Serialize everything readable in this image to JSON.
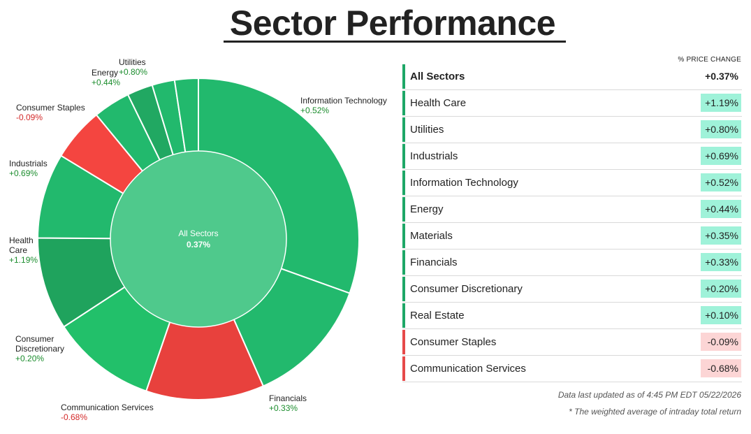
{
  "page": {
    "title": "Sector Performance"
  },
  "colors": {
    "pos_strong": "#1fab5c",
    "pos": "#22b96d",
    "neg": "#e8413d",
    "center": "#4fc98c",
    "pos_badge": "#9ff2d9",
    "neg_badge": "#fcd5d5",
    "pos_bar": "#1ea767",
    "neg_bar": "#e64a4a"
  },
  "chart_data": {
    "type": "pie",
    "title": "Sector Performance",
    "center_label": "All Sectors",
    "center_value": "0.37%",
    "slices": [
      {
        "name": "Information Technology",
        "change": "+0.52%",
        "color": "#22b96d",
        "weight": 29.5
      },
      {
        "name": "Financials",
        "change": "+0.33%",
        "color": "#22b96d",
        "weight": 12.5
      },
      {
        "name": "Communication Services",
        "change": "-0.68%",
        "color": "#e8413d",
        "weight": 11.5
      },
      {
        "name": "Consumer Discretionary",
        "change": "+0.20%",
        "color": "#22c06a",
        "weight": 10.2
      },
      {
        "name": "Health Care",
        "change": "+1.19%",
        "color": "#1fa35d",
        "weight": 9.0
      },
      {
        "name": "Industrials",
        "change": "+0.69%",
        "color": "#22b96d",
        "weight": 8.3
      },
      {
        "name": "Consumer Staples",
        "change": "-0.09%",
        "color": "#f44540",
        "weight": 5.2
      },
      {
        "name": "Energy",
        "change": "+0.44%",
        "color": "#22b96d",
        "weight": 3.6
      },
      {
        "name": "Materials",
        "change": "+0.35%",
        "color": "#21a862",
        "weight": 2.5
      },
      {
        "name": "Utilities",
        "change": "+0.80%",
        "color": "#22b96d",
        "weight": 2.2
      },
      {
        "name": "Real Estate",
        "change": "+0.10%",
        "color": "#22b96d",
        "weight": 2.3
      }
    ]
  },
  "labels": {
    "it": {
      "name": "Information Technology",
      "change": "+0.52%"
    },
    "fin": {
      "name": "Financials",
      "change": "+0.33%"
    },
    "comm": {
      "name": "Communication Services",
      "change": "-0.68%"
    },
    "disc_1": "Consumer",
    "disc_2": "Discretionary",
    "disc_chg": "+0.20%",
    "hc_1": "Health",
    "hc_2": "Care",
    "hc_chg": "+1.19%",
    "ind": {
      "name": "Industrials",
      "change": "+0.69%"
    },
    "staples": {
      "name": "Consumer Staples",
      "change": "-0.09%"
    },
    "energy": {
      "name": "Energy",
      "change": "+0.44%"
    },
    "util": {
      "name": "Utilities",
      "change": "+0.80%"
    }
  },
  "table": {
    "header": "% PRICE CHANGE",
    "rows": [
      {
        "name": "All Sectors",
        "value": "+0.37%",
        "dir": "pos"
      },
      {
        "name": "Health Care",
        "value": "+1.19%",
        "dir": "pos"
      },
      {
        "name": "Utilities",
        "value": "+0.80%",
        "dir": "pos"
      },
      {
        "name": "Industrials",
        "value": "+0.69%",
        "dir": "pos"
      },
      {
        "name": "Information Technology",
        "value": "+0.52%",
        "dir": "pos"
      },
      {
        "name": "Energy",
        "value": "+0.44%",
        "dir": "pos"
      },
      {
        "name": "Materials",
        "value": "+0.35%",
        "dir": "pos"
      },
      {
        "name": "Financials",
        "value": "+0.33%",
        "dir": "pos"
      },
      {
        "name": "Consumer Discretionary",
        "value": "+0.20%",
        "dir": "pos"
      },
      {
        "name": "Real Estate",
        "value": "+0.10%",
        "dir": "pos"
      },
      {
        "name": "Consumer Staples",
        "value": "-0.09%",
        "dir": "neg"
      },
      {
        "name": "Communication Services",
        "value": "-0.68%",
        "dir": "neg"
      }
    ]
  },
  "footer": {
    "updated": "Data last updated as of 4:45 PM EDT 05/22/2026",
    "note": "* The weighted average of intraday total return"
  }
}
